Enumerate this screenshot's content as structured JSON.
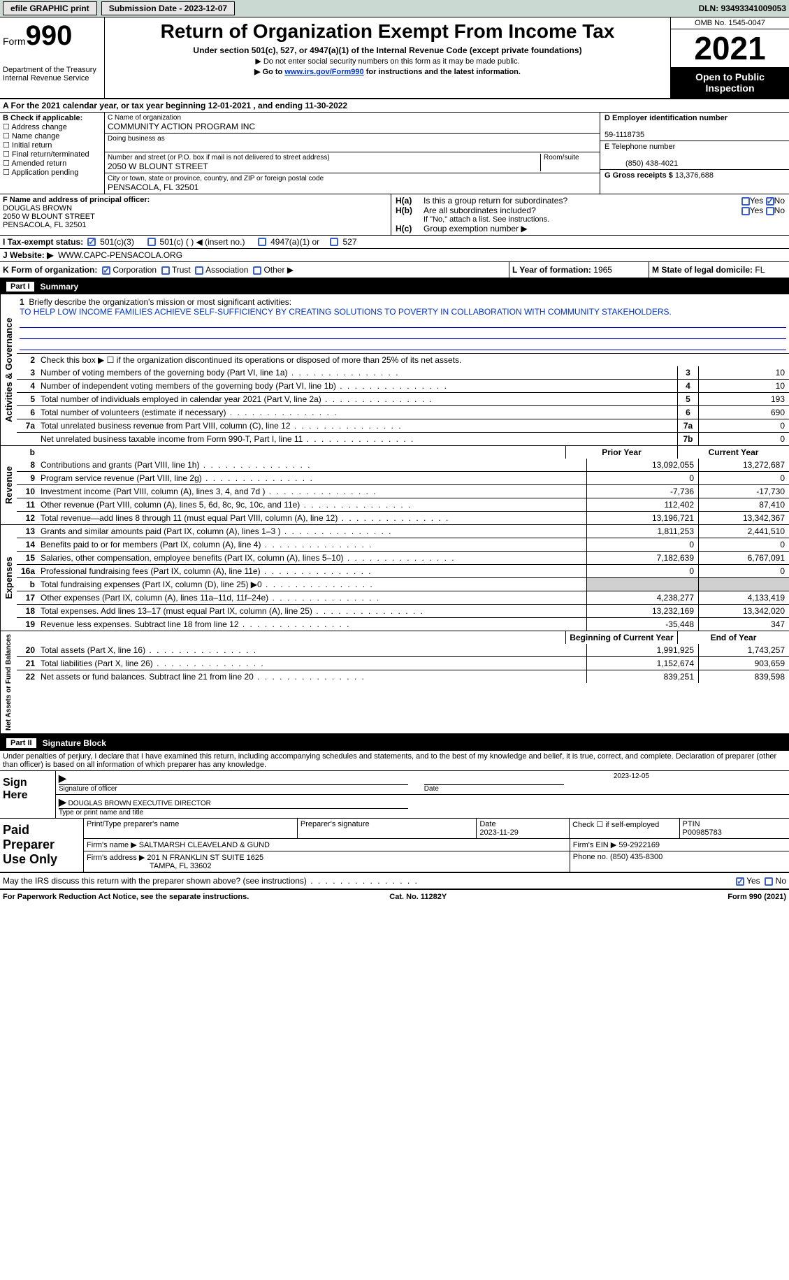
{
  "topbar": {
    "efile": "efile GRAPHIC print",
    "submission": "Submission Date - 2023-12-07",
    "dln": "DLN: 93493341009053"
  },
  "header": {
    "form_label": "Form",
    "form_no": "990",
    "dept": "Department of the Treasury",
    "irs": "Internal Revenue Service",
    "title": "Return of Organization Exempt From Income Tax",
    "sub1": "Under section 501(c), 527, or 4947(a)(1) of the Internal Revenue Code (except private foundations)",
    "sub2": "▶ Do not enter social security numbers on this form as it may be made public.",
    "sub3_pre": "▶ Go to ",
    "sub3_link": "www.irs.gov/Form990",
    "sub3_post": " for instructions and the latest information.",
    "omb": "OMB No. 1545-0047",
    "year": "2021",
    "inspect": "Open to Public Inspection"
  },
  "A": "A For the 2021 calendar year, or tax year beginning 12-01-2021    , and ending 11-30-2022",
  "B": {
    "label": "B Check if applicable:",
    "opts": [
      "Address change",
      "Name change",
      "Initial return",
      "Final return/terminated",
      "Amended return",
      "Application pending"
    ]
  },
  "C": {
    "name_lbl": "C Name of organization",
    "name": "COMMUNITY ACTION PROGRAM INC",
    "dba_lbl": "Doing business as",
    "dba": "",
    "street_lbl": "Number and street (or P.O. box if mail is not delivered to street address)",
    "room_lbl": "Room/suite",
    "street": "2050 W BLOUNT STREET",
    "city_lbl": "City or town, state or province, country, and ZIP or foreign postal code",
    "city": "PENSACOLA, FL  32501"
  },
  "D": {
    "ein_lbl": "D Employer identification number",
    "ein": "59-1118735",
    "phone_lbl": "E Telephone number",
    "phone": "(850) 438-4021",
    "gross_lbl": "G Gross receipts $",
    "gross": "13,376,688"
  },
  "F": {
    "lbl": "F Name and address of principal officer:",
    "name": "DOUGLAS BROWN",
    "street": "2050 W BLOUNT STREET",
    "city": "PENSACOLA, FL  32501"
  },
  "H": {
    "a": "Is this a group return for subordinates?",
    "b": "Are all subordinates included?",
    "b_note": "If \"No,\" attach a list. See instructions.",
    "c": "Group exemption number ▶",
    "yes": "Yes",
    "no": "No"
  },
  "I": {
    "lbl": "I    Tax-exempt status:",
    "o1": "501(c)(3)",
    "o2": "501(c) (  ) ◀ (insert no.)",
    "o3": "4947(a)(1) or",
    "o4": "527"
  },
  "J": {
    "lbl": "J    Website: ▶",
    "val": "WWW.CAPC-PENSACOLA.ORG"
  },
  "K": {
    "lbl": "K Form of organization:",
    "o1": "Corporation",
    "o2": "Trust",
    "o3": "Association",
    "o4": "Other ▶"
  },
  "L": {
    "lbl": "L Year of formation:",
    "val": "1965"
  },
  "M": {
    "lbl": "M State of legal domicile:",
    "val": "FL"
  },
  "partI": {
    "title": "Part I",
    "name": "Summary",
    "side1": "Activities & Governance",
    "side2": "Revenue",
    "side3": "Expenses",
    "side4": "Net Assets or Fund Balances",
    "l1_lbl": "Briefly describe the organization's mission or most significant activities:",
    "l1_val": "TO HELP LOW INCOME FAMILIES ACHIEVE SELF-SUFFICIENCY BY CREATING SOLUTIONS TO POVERTY IN COLLABORATION WITH COMMUNITY STAKEHOLDERS.",
    "l2": "Check this box ▶ ☐ if the organization discontinued its operations or disposed of more than 25% of its net assets.",
    "lines_ag": [
      {
        "n": "3",
        "d": "Number of voting members of the governing body (Part VI, line 1a)",
        "b": "3",
        "v": "10"
      },
      {
        "n": "4",
        "d": "Number of independent voting members of the governing body (Part VI, line 1b)",
        "b": "4",
        "v": "10"
      },
      {
        "n": "5",
        "d": "Total number of individuals employed in calendar year 2021 (Part V, line 2a)",
        "b": "5",
        "v": "193"
      },
      {
        "n": "6",
        "d": "Total number of volunteers (estimate if necessary)",
        "b": "6",
        "v": "690"
      },
      {
        "n": "7a",
        "d": "Total unrelated business revenue from Part VIII, column (C), line 12",
        "b": "7a",
        "v": "0"
      },
      {
        "n": "",
        "d": "Net unrelated business taxable income from Form 990-T, Part I, line 11",
        "b": "7b",
        "v": "0"
      }
    ],
    "hdr": {
      "b": "b",
      "py": "Prior Year",
      "cy": "Current Year"
    },
    "lines_rev": [
      {
        "n": "8",
        "d": "Contributions and grants (Part VIII, line 1h)",
        "py": "13,092,055",
        "cy": "13,272,687"
      },
      {
        "n": "9",
        "d": "Program service revenue (Part VIII, line 2g)",
        "py": "0",
        "cy": "0"
      },
      {
        "n": "10",
        "d": "Investment income (Part VIII, column (A), lines 3, 4, and 7d )",
        "py": "-7,736",
        "cy": "-17,730"
      },
      {
        "n": "11",
        "d": "Other revenue (Part VIII, column (A), lines 5, 6d, 8c, 9c, 10c, and 11e)",
        "py": "112,402",
        "cy": "87,410"
      },
      {
        "n": "12",
        "d": "Total revenue—add lines 8 through 11 (must equal Part VIII, column (A), line 12)",
        "py": "13,196,721",
        "cy": "13,342,367"
      }
    ],
    "lines_exp": [
      {
        "n": "13",
        "d": "Grants and similar amounts paid (Part IX, column (A), lines 1–3 )",
        "py": "1,811,253",
        "cy": "2,441,510"
      },
      {
        "n": "14",
        "d": "Benefits paid to or for members (Part IX, column (A), line 4)",
        "py": "0",
        "cy": "0"
      },
      {
        "n": "15",
        "d": "Salaries, other compensation, employee benefits (Part IX, column (A), lines 5–10)",
        "py": "7,182,639",
        "cy": "6,767,091"
      },
      {
        "n": "16a",
        "d": "Professional fundraising fees (Part IX, column (A), line 11e)",
        "py": "0",
        "cy": "0"
      },
      {
        "n": "b",
        "d": "Total fundraising expenses (Part IX, column (D), line 25) ▶0",
        "py": "",
        "cy": "",
        "grey": true
      },
      {
        "n": "17",
        "d": "Other expenses (Part IX, column (A), lines 11a–11d, 11f–24e)",
        "py": "4,238,277",
        "cy": "4,133,419"
      },
      {
        "n": "18",
        "d": "Total expenses. Add lines 13–17 (must equal Part IX, column (A), line 25)",
        "py": "13,232,169",
        "cy": "13,342,020"
      },
      {
        "n": "19",
        "d": "Revenue less expenses. Subtract line 18 from line 12",
        "py": "-35,448",
        "cy": "347"
      }
    ],
    "hdr2": {
      "py": "Beginning of Current Year",
      "cy": "End of Year"
    },
    "lines_net": [
      {
        "n": "20",
        "d": "Total assets (Part X, line 16)",
        "py": "1,991,925",
        "cy": "1,743,257"
      },
      {
        "n": "21",
        "d": "Total liabilities (Part X, line 26)",
        "py": "1,152,674",
        "cy": "903,659"
      },
      {
        "n": "22",
        "d": "Net assets or fund balances. Subtract line 21 from line 20",
        "py": "839,251",
        "cy": "839,598"
      }
    ]
  },
  "partII": {
    "title": "Part II",
    "name": "Signature Block",
    "decl": "Under penalties of perjury, I declare that I have examined this return, including accompanying schedules and statements, and to the best of my knowledge and belief, it is true, correct, and complete. Declaration of preparer (other than officer) is based on all information of which preparer has any knowledge.",
    "sign_here": "Sign Here",
    "sig_officer": "Signature of officer",
    "sig_date": "2023-12-05",
    "date_lbl": "Date",
    "officer": "DOUGLAS BROWN  EXECUTIVE DIRECTOR",
    "officer_lbl": "Type or print name and title",
    "paid": "Paid Preparer Use Only",
    "pname_lbl": "Print/Type preparer's name",
    "psig_lbl": "Preparer's signature",
    "pdate_lbl": "Date",
    "pdate": "2023-11-29",
    "pself_lbl": "Check ☐ if self-employed",
    "ptin_lbl": "PTIN",
    "ptin": "P00985783",
    "firm_lbl": "Firm's name    ▶",
    "firm": "SALTMARSH CLEAVELAND & GUND",
    "fein_lbl": "Firm's EIN ▶",
    "fein": "59-2922169",
    "faddr_lbl": "Firm's address ▶",
    "faddr1": "201 N FRANKLIN ST SUITE 1625",
    "faddr2": "TAMPA, FL  33602",
    "fphone_lbl": "Phone no.",
    "fphone": "(850) 435-8300",
    "discuss": "May the IRS discuss this return with the preparer shown above? (see instructions)"
  },
  "footer": {
    "left": "For Paperwork Reduction Act Notice, see the separate instructions.",
    "mid": "Cat. No. 11282Y",
    "right": "Form 990 (2021)"
  },
  "colors": {
    "link": "#0033cc",
    "checkbox": "#3a5fcd"
  }
}
